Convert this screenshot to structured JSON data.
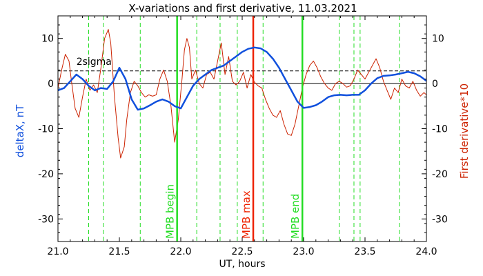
{
  "chart_data": {
    "type": "line",
    "title": "X-variations and first derivative, 11.03.2021",
    "xlabel": "UT, hours",
    "ylabel_left": "deltaX, nT",
    "ylabel_right": "First derivative*10",
    "xlim": [
      21.0,
      24.0
    ],
    "ylim": [
      -35,
      15
    ],
    "x_ticks": [
      "21.0",
      "21.5",
      "22.0",
      "22.5",
      "23.0",
      "23.5",
      "24.0"
    ],
    "y_ticks_left": [
      "10",
      "0",
      "-10",
      "-20",
      "-30"
    ],
    "y_ticks_right": [
      "10",
      "0",
      "-10",
      "-20",
      "-30"
    ],
    "sigma_label": "2sigma",
    "sigma_level": 2.8,
    "zero_level": 0,
    "grid": false,
    "colors": {
      "deltaX": "#1050dd",
      "derivative": "#cc2200",
      "green": "#22dd22",
      "red": "#ee2200",
      "sigma": "#000000"
    },
    "dashed_green_lines": [
      21.25,
      21.37,
      21.67,
      22.13,
      22.32,
      22.46,
      22.67,
      23.29,
      23.41,
      23.46,
      23.78
    ],
    "markers": [
      {
        "x": 21.97,
        "label": "MPB begin",
        "color": "#22dd22"
      },
      {
        "x": 22.59,
        "label": "MPB max",
        "color": "#ee2200"
      },
      {
        "x": 22.99,
        "label": "MPB end",
        "color": "#22dd22"
      }
    ],
    "series": [
      {
        "name": "deltaX",
        "x": [
          21.0,
          21.05,
          21.1,
          21.15,
          21.2,
          21.25,
          21.3,
          21.35,
          21.4,
          21.45,
          21.5,
          21.55,
          21.6,
          21.65,
          21.7,
          21.75,
          21.8,
          21.85,
          21.9,
          21.95,
          22.0,
          22.05,
          22.1,
          22.15,
          22.2,
          22.25,
          22.3,
          22.35,
          22.4,
          22.45,
          22.5,
          22.55,
          22.6,
          22.65,
          22.7,
          22.75,
          22.8,
          22.85,
          22.9,
          22.95,
          23.0,
          23.05,
          23.1,
          23.15,
          23.2,
          23.25,
          23.3,
          23.35,
          23.4,
          23.45,
          23.5,
          23.55,
          23.6,
          23.65,
          23.7,
          23.75,
          23.8,
          23.85,
          23.9,
          23.95,
          24.0
        ],
        "y": [
          -1.5,
          -1.0,
          0.5,
          2.0,
          1.0,
          -0.5,
          -1.5,
          -1.0,
          -1.2,
          0.5,
          3.5,
          1.0,
          -3.5,
          -5.8,
          -5.5,
          -4.8,
          -4.0,
          -3.5,
          -4.0,
          -5.0,
          -5.5,
          -3.0,
          -0.5,
          1.0,
          2.0,
          3.0,
          3.5,
          4.0,
          5.0,
          6.0,
          7.0,
          7.7,
          8.0,
          7.8,
          7.0,
          5.5,
          3.5,
          1.0,
          -1.5,
          -4.0,
          -5.4,
          -5.2,
          -4.8,
          -4.0,
          -3.0,
          -2.6,
          -2.5,
          -2.6,
          -2.5,
          -2.5,
          -1.5,
          0,
          1.2,
          1.7,
          1.8,
          2.0,
          2.3,
          2.6,
          2.3,
          1.6,
          0.6
        ]
      },
      {
        "name": "derivative*10",
        "x": [
          21.0,
          21.03,
          21.06,
          21.09,
          21.11,
          21.14,
          21.17,
          21.2,
          21.23,
          21.26,
          21.29,
          21.32,
          21.35,
          21.38,
          21.41,
          21.43,
          21.46,
          21.49,
          21.51,
          21.54,
          21.56,
          21.59,
          21.62,
          21.65,
          21.68,
          21.71,
          21.74,
          21.77,
          21.8,
          21.83,
          21.86,
          21.89,
          21.92,
          21.95,
          21.98,
          22.01,
          22.03,
          22.05,
          22.07,
          22.09,
          22.12,
          22.15,
          22.18,
          22.21,
          22.24,
          22.27,
          22.3,
          22.33,
          22.36,
          22.39,
          22.42,
          22.45,
          22.48,
          22.51,
          22.54,
          22.57,
          22.6,
          22.63,
          22.66,
          22.69,
          22.72,
          22.75,
          22.78,
          22.81,
          22.84,
          22.87,
          22.9,
          22.93,
          22.96,
          22.99,
          23.02,
          23.05,
          23.08,
          23.11,
          23.14,
          23.17,
          23.2,
          23.23,
          23.26,
          23.29,
          23.32,
          23.35,
          23.38,
          23.41,
          23.44,
          23.47,
          23.5,
          23.53,
          23.56,
          23.59,
          23.62,
          23.65,
          23.68,
          23.71,
          23.74,
          23.77,
          23.8,
          23.83,
          23.86,
          23.89,
          23.92,
          23.95,
          23.98,
          24.0
        ],
        "y": [
          -1.0,
          3.0,
          6.5,
          5.0,
          0.5,
          -5.5,
          -7.5,
          -3.0,
          1.0,
          -1.5,
          -0.3,
          -2.0,
          3.5,
          10.0,
          12.0,
          9.0,
          -3.0,
          -12.0,
          -16.5,
          -14.0,
          -8.0,
          -2.0,
          0.5,
          -0.5,
          -2.0,
          -3.0,
          -2.5,
          -2.8,
          -2.5,
          1.0,
          3.0,
          0.5,
          -5.0,
          -13.0,
          -8.0,
          1.0,
          7.5,
          10.0,
          8.0,
          1.0,
          3.0,
          0,
          -1.0,
          2.0,
          2.5,
          1.0,
          5.0,
          9.0,
          2.0,
          6.0,
          0.5,
          -0.3,
          0.5,
          2.5,
          -1.0,
          2.0,
          0.3,
          -0.5,
          -1.0,
          -3.5,
          -5.5,
          -7.0,
          -7.5,
          -6.0,
          -9.0,
          -11.2,
          -11.5,
          -9.0,
          -5.0,
          -1.0,
          2.0,
          4.0,
          5.0,
          3.5,
          1.5,
          0,
          -1.0,
          -1.5,
          0,
          0.5,
          0,
          -0.8,
          -0.5,
          1.0,
          3.0,
          2.0,
          1.0,
          2.5,
          4.0,
          5.5,
          3.5,
          0.5,
          -1.5,
          -3.5,
          -1.0,
          -2.0,
          1.0,
          -0.5,
          -1.0,
          0.5,
          -1.5,
          -2.8,
          -2.0,
          -2.5
        ]
      }
    ]
  }
}
